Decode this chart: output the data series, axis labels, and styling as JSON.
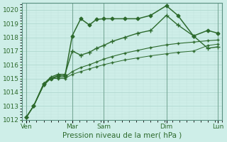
{
  "xlabel": "Pression niveau de la mer( hPa )",
  "ylabel": "",
  "ylim": [
    1012,
    1020.5
  ],
  "xlim": [
    0.0,
    14.0
  ],
  "yticks": [
    1012,
    1013,
    1014,
    1015,
    1016,
    1017,
    1018,
    1019,
    1020
  ],
  "xtick_positions": [
    0.3,
    3.5,
    5.7,
    10.1,
    13.7
  ],
  "xtick_labels": [
    "Ven",
    "Mar",
    "Sam",
    "Dim",
    "Lun"
  ],
  "background_color": "#ceeee8",
  "grid_major_color": "#b0d8d0",
  "grid_minor_color": "#c0e4dc",
  "line_color": "#2d6a2d",
  "vline_color": "#7aaa9a",
  "vline_positions": [
    0.3,
    3.5,
    5.7,
    10.1,
    13.7
  ],
  "series": [
    {
      "x": [
        0.3,
        0.8,
        1.5,
        2.0,
        2.5,
        3.0,
        3.5,
        4.1,
        4.7,
        5.2,
        5.7,
        6.3,
        7.2,
        8.1,
        9.0,
        10.1,
        10.9,
        12.0,
        13.0,
        13.7
      ],
      "y": [
        1012.2,
        1013.0,
        1014.6,
        1015.0,
        1015.2,
        1015.2,
        1018.1,
        1019.35,
        1018.9,
        1019.3,
        1019.35,
        1019.35,
        1019.35,
        1019.35,
        1019.6,
        1020.3,
        1019.6,
        1018.1,
        1018.5,
        1018.3
      ],
      "marker": "D",
      "markersize": 2.5,
      "linewidth": 1.1
    },
    {
      "x": [
        0.3,
        0.8,
        1.5,
        2.0,
        2.5,
        3.0,
        3.5,
        4.1,
        4.7,
        5.2,
        5.7,
        6.3,
        7.2,
        8.1,
        9.0,
        10.1,
        10.9,
        12.0,
        13.0,
        13.7
      ],
      "y": [
        1012.2,
        1013.0,
        1014.6,
        1015.1,
        1015.3,
        1015.3,
        1017.0,
        1016.7,
        1016.9,
        1017.2,
        1017.4,
        1017.7,
        1018.0,
        1018.3,
        1018.5,
        1019.6,
        1018.9,
        1018.1,
        1017.2,
        1017.3
      ],
      "marker": "+",
      "markersize": 4.0,
      "linewidth": 1.0
    },
    {
      "x": [
        0.3,
        0.8,
        1.5,
        2.0,
        2.5,
        3.0,
        3.5,
        4.1,
        4.7,
        5.2,
        5.7,
        6.3,
        7.2,
        8.1,
        9.0,
        10.1,
        10.9,
        12.0,
        13.0,
        13.7
      ],
      "y": [
        1012.2,
        1013.0,
        1014.5,
        1015.0,
        1015.1,
        1015.1,
        1015.5,
        1015.8,
        1016.0,
        1016.2,
        1016.4,
        1016.6,
        1016.85,
        1017.05,
        1017.25,
        1017.45,
        1017.55,
        1017.65,
        1017.75,
        1017.8
      ],
      "marker": "+",
      "markersize": 3.0,
      "linewidth": 0.8
    },
    {
      "x": [
        0.3,
        0.8,
        1.5,
        2.0,
        2.5,
        3.0,
        3.5,
        4.1,
        4.7,
        5.2,
        5.7,
        6.3,
        7.2,
        8.1,
        9.0,
        10.1,
        10.9,
        12.0,
        13.0,
        13.7
      ],
      "y": [
        1012.2,
        1013.0,
        1014.5,
        1015.0,
        1015.0,
        1015.0,
        1015.3,
        1015.5,
        1015.7,
        1015.85,
        1016.0,
        1016.15,
        1016.35,
        1016.5,
        1016.65,
        1016.8,
        1016.9,
        1017.0,
        1017.4,
        1017.5
      ],
      "marker": "+",
      "markersize": 2.5,
      "linewidth": 0.7
    }
  ]
}
